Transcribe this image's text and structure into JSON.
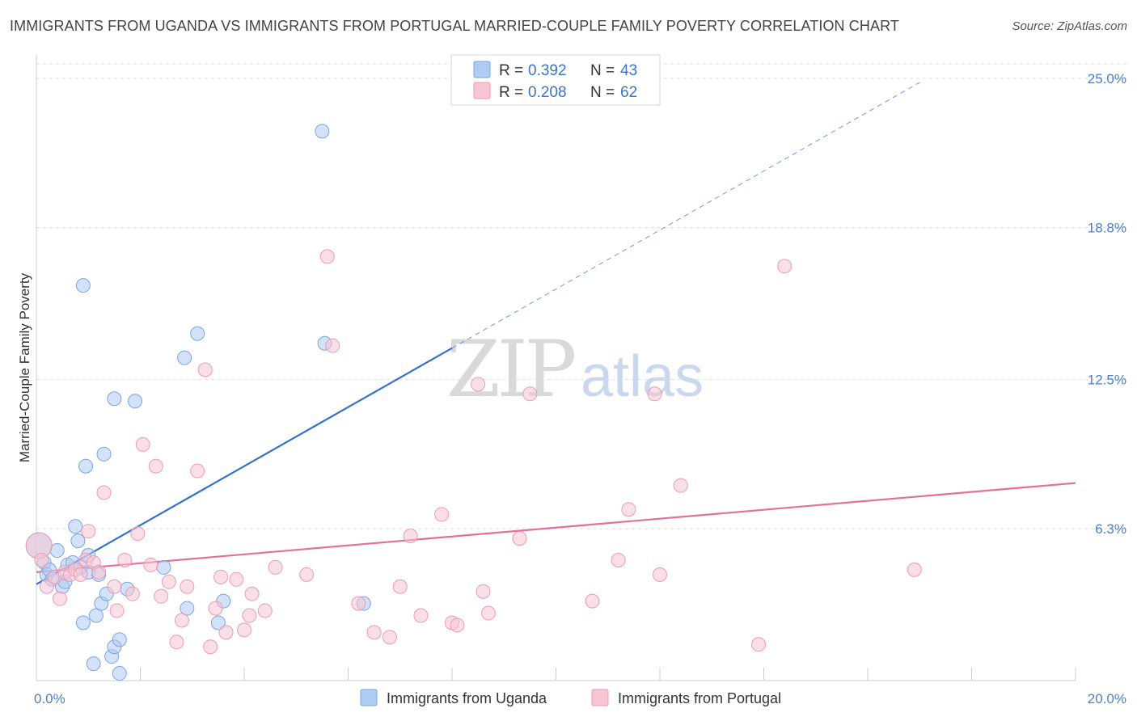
{
  "title": "IMMIGRANTS FROM UGANDA VS IMMIGRANTS FROM PORTUGAL MARRIED-COUPLE FAMILY POVERTY CORRELATION CHART",
  "source": "Source: ZipAtlas.com",
  "watermark": {
    "zip": "ZIP",
    "atlas": "atlas"
  },
  "legend_box": {
    "r_label": "R =",
    "n_label": "N =",
    "entries": [
      {
        "r": "0.392",
        "n": "43",
        "color": "#aecbf2",
        "stroke": "#7aa6e0"
      },
      {
        "r": "0.208",
        "n": "62",
        "color": "#f7c5d4",
        "stroke": "#ee9ab4"
      }
    ]
  },
  "chart_data": {
    "type": "scatter",
    "title": "IMMIGRANTS FROM UGANDA VS IMMIGRANTS FROM PORTUGAL MARRIED-COUPLE FAMILY POVERTY CORRELATION CHART",
    "xlabel": "",
    "ylabel": "Married-Couple Family Poverty",
    "xlim": [
      0,
      20
    ],
    "ylim": [
      0,
      25.9
    ],
    "x_tick_labels": [
      "0.0%",
      "20.0%"
    ],
    "y_ticks": [
      6.3,
      12.5,
      18.8,
      25.0
    ],
    "y_tick_labels": [
      "6.3%",
      "12.5%",
      "18.8%",
      "25.0%"
    ],
    "legend_position": "bottom",
    "series": [
      {
        "name": "Immigrants from Uganda",
        "color": "#aecbf2",
        "stroke": "#7aa6e0",
        "line_color": "#3272cc",
        "trend": {
          "x0": 0.0,
          "y0": 4.0,
          "x1": 8.0,
          "y1": 13.8,
          "x_dash_end": 17.0
        },
        "points": [
          [
            0.05,
            5.6
          ],
          [
            0.15,
            4.9
          ],
          [
            0.2,
            4.4
          ],
          [
            0.25,
            4.6
          ],
          [
            0.3,
            4.2
          ],
          [
            0.4,
            5.4
          ],
          [
            0.5,
            3.9
          ],
          [
            0.55,
            4.1
          ],
          [
            0.6,
            4.8
          ],
          [
            0.7,
            4.9
          ],
          [
            0.75,
            6.4
          ],
          [
            0.8,
            5.8
          ],
          [
            0.85,
            4.7
          ],
          [
            0.9,
            2.4
          ],
          [
            0.9,
            16.4
          ],
          [
            0.95,
            8.9
          ],
          [
            1.0,
            4.5
          ],
          [
            1.0,
            5.2
          ],
          [
            1.1,
            0.7
          ],
          [
            1.15,
            2.7
          ],
          [
            1.2,
            4.4
          ],
          [
            1.25,
            3.2
          ],
          [
            1.3,
            9.4
          ],
          [
            1.35,
            3.6
          ],
          [
            1.45,
            1.0
          ],
          [
            1.5,
            1.4
          ],
          [
            1.5,
            11.7
          ],
          [
            1.6,
            1.7
          ],
          [
            1.6,
            0.3
          ],
          [
            1.75,
            3.8
          ],
          [
            1.9,
            11.6
          ],
          [
            2.45,
            4.7
          ],
          [
            2.85,
            13.4
          ],
          [
            2.9,
            3.0
          ],
          [
            3.1,
            14.4
          ],
          [
            3.5,
            2.4
          ],
          [
            3.6,
            3.3
          ],
          [
            5.5,
            22.8
          ],
          [
            5.55,
            14.0
          ],
          [
            6.3,
            3.2
          ]
        ]
      },
      {
        "name": "Immigrants from Portugal",
        "color": "#f7c5d4",
        "stroke": "#ee9ab4",
        "line_color": "#e3709b",
        "trend": {
          "x0": 0.0,
          "y0": 4.5,
          "x1": 20.0,
          "y1": 8.2,
          "x_dash_end": 20.0
        },
        "points": [
          [
            0.05,
            5.6
          ],
          [
            0.1,
            5.0
          ],
          [
            0.2,
            3.9
          ],
          [
            0.35,
            4.3
          ],
          [
            0.45,
            3.4
          ],
          [
            0.55,
            4.5
          ],
          [
            0.65,
            4.4
          ],
          [
            0.75,
            4.6
          ],
          [
            0.85,
            4.4
          ],
          [
            0.95,
            5.0
          ],
          [
            1.0,
            6.2
          ],
          [
            1.1,
            4.9
          ],
          [
            1.2,
            4.5
          ],
          [
            1.3,
            7.8
          ],
          [
            1.5,
            3.9
          ],
          [
            1.55,
            2.9
          ],
          [
            1.7,
            5.0
          ],
          [
            1.85,
            3.6
          ],
          [
            1.95,
            6.1
          ],
          [
            2.05,
            9.8
          ],
          [
            2.2,
            4.8
          ],
          [
            2.3,
            8.9
          ],
          [
            2.4,
            3.5
          ],
          [
            2.55,
            4.1
          ],
          [
            2.7,
            1.6
          ],
          [
            2.8,
            2.5
          ],
          [
            2.9,
            3.9
          ],
          [
            3.1,
            8.7
          ],
          [
            3.25,
            12.9
          ],
          [
            3.35,
            1.4
          ],
          [
            3.45,
            3.0
          ],
          [
            3.55,
            4.3
          ],
          [
            3.65,
            2.0
          ],
          [
            3.85,
            4.2
          ],
          [
            4.0,
            2.1
          ],
          [
            4.1,
            2.7
          ],
          [
            4.15,
            3.6
          ],
          [
            4.4,
            2.9
          ],
          [
            4.6,
            4.7
          ],
          [
            5.2,
            4.4
          ],
          [
            5.6,
            17.6
          ],
          [
            5.7,
            13.9
          ],
          [
            6.2,
            3.2
          ],
          [
            6.5,
            2.0
          ],
          [
            6.8,
            1.8
          ],
          [
            7.0,
            3.9
          ],
          [
            7.2,
            6.0
          ],
          [
            7.4,
            2.7
          ],
          [
            7.8,
            6.9
          ],
          [
            8.0,
            2.4
          ],
          [
            8.1,
            2.3
          ],
          [
            8.5,
            12.3
          ],
          [
            8.6,
            3.7
          ],
          [
            8.7,
            2.8
          ],
          [
            9.5,
            11.9
          ],
          [
            9.3,
            5.9
          ],
          [
            10.7,
            3.3
          ],
          [
            11.2,
            5.0
          ],
          [
            11.4,
            7.1
          ],
          [
            11.9,
            11.9
          ],
          [
            12.0,
            4.4
          ],
          [
            12.4,
            8.1
          ],
          [
            13.9,
            1.5
          ],
          [
            14.4,
            17.2
          ],
          [
            16.9,
            4.6
          ]
        ]
      }
    ]
  },
  "bottom_legend": [
    {
      "label": "Immigrants from Uganda"
    },
    {
      "label": "Immigrants from Portugal"
    }
  ]
}
